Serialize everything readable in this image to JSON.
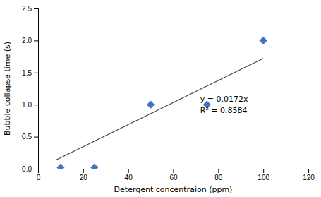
{
  "chart_data": {
    "type": "scatter",
    "xlabel": "Detergent concentraion (ppm)",
    "ylabel": "Bubble collapse time (s)",
    "xlim": [
      0,
      120
    ],
    "ylim": [
      0,
      2.5
    ],
    "xticks": [
      0,
      20,
      40,
      60,
      80,
      100,
      120
    ],
    "yticks": [
      {
        "value": 0,
        "label": "0.0"
      },
      0.5,
      {
        "value": 1.0,
        "label": "1.0"
      },
      {
        "value": 1.5,
        "label": "1.5"
      },
      {
        "value": 2.0,
        "label": "2.0"
      },
      {
        "value": 2.5,
        "label": "2.5"
      }
    ],
    "grid": false,
    "series": [
      {
        "type": "scatter",
        "color": "#4472C4",
        "marker": "diamond",
        "x": [
          10,
          25,
          50,
          75,
          100
        ],
        "values": [
          0.02,
          0.02,
          1.0,
          1.0,
          2.0
        ]
      },
      {
        "type": "line",
        "color": "#404040",
        "x": [
          8,
          100
        ],
        "values": [
          0.1376,
          1.72
        ]
      }
    ],
    "annotations": [
      "y = 0.0172x",
      "R² = 0.8584"
    ]
  }
}
